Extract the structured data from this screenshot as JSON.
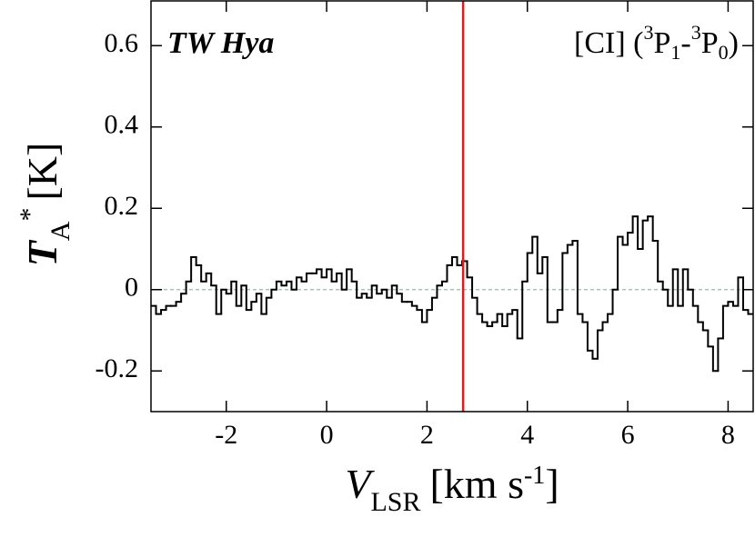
{
  "chart_data": {
    "type": "step",
    "annotation": "TW Hya",
    "line_label_parts": [
      "[CI] (",
      "3",
      "P",
      "1",
      "-",
      "3",
      "P",
      "0",
      ")"
    ],
    "x_label_parts": [
      "V",
      "LSR",
      "[km s",
      "-1",
      "]"
    ],
    "y_label_parts": [
      "T",
      "A",
      "*",
      "[K]"
    ],
    "xlim": [
      -3.5,
      8.5
    ],
    "ylim": [
      -0.3,
      0.71
    ],
    "xticks": [
      -2,
      0,
      2,
      4,
      6,
      8
    ],
    "yticks": [
      0.6,
      0.4,
      0.2,
      0,
      -0.2
    ],
    "hline": {
      "value": 0,
      "color": "#9fb5b5"
    },
    "vline": {
      "value": 2.72,
      "color": "#d62020"
    },
    "series": [
      {
        "color": "#000000",
        "x": [
          -3.45,
          -3.35,
          -3.25,
          -3.15,
          -3.05,
          -2.95,
          -2.85,
          -2.75,
          -2.65,
          -2.55,
          -2.45,
          -2.35,
          -2.25,
          -2.15,
          -2.05,
          -1.95,
          -1.85,
          -1.75,
          -1.65,
          -1.55,
          -1.45,
          -1.35,
          -1.25,
          -1.15,
          -1.05,
          -0.95,
          -0.85,
          -0.75,
          -0.65,
          -0.55,
          -0.45,
          -0.35,
          -0.25,
          -0.15,
          -0.05,
          0.05,
          0.15,
          0.25,
          0.35,
          0.45,
          0.55,
          0.65,
          0.75,
          0.85,
          0.95,
          1.05,
          1.15,
          1.25,
          1.35,
          1.45,
          1.55,
          1.65,
          1.75,
          1.85,
          1.95,
          2.05,
          2.15,
          2.25,
          2.35,
          2.45,
          2.55,
          2.65,
          2.75,
          2.85,
          2.95,
          3.05,
          3.15,
          3.25,
          3.35,
          3.45,
          3.55,
          3.65,
          3.75,
          3.85,
          3.95,
          4.05,
          4.15,
          4.25,
          4.35,
          4.45,
          4.55,
          4.65,
          4.75,
          4.85,
          4.95,
          5.05,
          5.15,
          5.25,
          5.35,
          5.45,
          5.55,
          5.65,
          5.75,
          5.85,
          5.95,
          6.05,
          6.15,
          6.25,
          6.35,
          6.45,
          6.55,
          6.65,
          6.75,
          6.85,
          6.95,
          7.05,
          7.15,
          7.25,
          7.35,
          7.45,
          7.55,
          7.65,
          7.75,
          7.85,
          7.95,
          8.05,
          8.15,
          8.25,
          8.35,
          8.45
        ],
        "values": [
          -0.04,
          -0.06,
          -0.05,
          -0.04,
          -0.04,
          -0.03,
          -0.01,
          0.02,
          0.08,
          0.06,
          0.02,
          0.04,
          0.01,
          -0.06,
          0.0,
          -0.01,
          0.02,
          -0.04,
          0.01,
          -0.05,
          -0.03,
          -0.01,
          -0.06,
          -0.02,
          0.0,
          0.02,
          0.01,
          0.02,
          0.0,
          0.03,
          0.02,
          0.04,
          0.04,
          0.05,
          0.03,
          0.05,
          0.02,
          0.04,
          0.0,
          0.05,
          0.02,
          -0.02,
          -0.01,
          -0.02,
          0.01,
          -0.01,
          0.0,
          -0.02,
          0.01,
          -0.01,
          -0.03,
          -0.03,
          -0.04,
          -0.05,
          -0.08,
          -0.05,
          -0.02,
          0.01,
          0.02,
          0.06,
          0.08,
          0.06,
          0.07,
          0.03,
          -0.02,
          -0.06,
          -0.08,
          -0.09,
          -0.08,
          -0.06,
          -0.09,
          -0.06,
          -0.05,
          -0.12,
          0.02,
          0.09,
          0.13,
          0.04,
          0.08,
          -0.08,
          -0.08,
          -0.05,
          0.09,
          0.11,
          0.12,
          -0.06,
          -0.08,
          -0.15,
          -0.17,
          -0.1,
          -0.08,
          -0.06,
          0.0,
          0.13,
          0.11,
          0.14,
          0.18,
          0.1,
          0.17,
          0.18,
          0.12,
          0.02,
          0.0,
          -0.04,
          0.05,
          -0.04,
          0.05,
          0.0,
          -0.04,
          -0.08,
          -0.1,
          -0.14,
          -0.2,
          -0.12,
          -0.04,
          -0.03,
          -0.04,
          0.03,
          -0.05,
          -0.06
        ]
      }
    ]
  }
}
